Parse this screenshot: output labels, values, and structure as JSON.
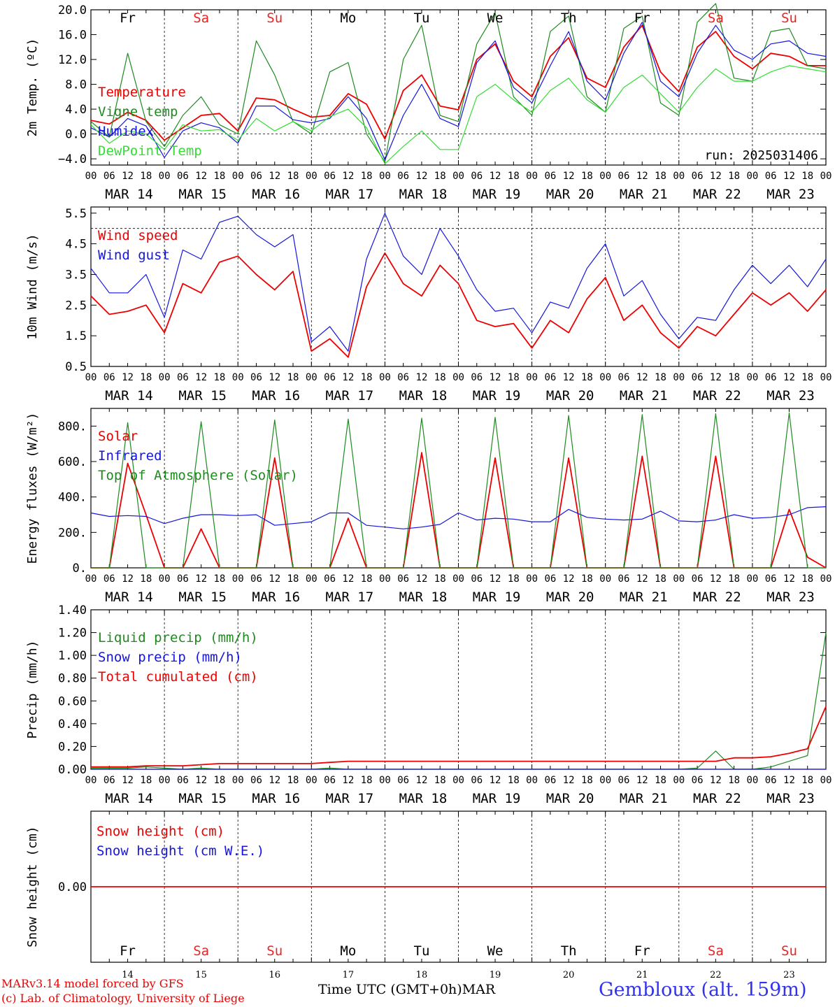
{
  "colors": {
    "red": "#ee0000",
    "green": "#1f8a1f",
    "blue": "#1515dd",
    "lightgreen": "#33dd33",
    "black": "#000000",
    "sat_sun": "#ee2222"
  },
  "days": [
    "Fr",
    "Sa",
    "Su",
    "Mo",
    "Tu",
    "We",
    "Th",
    "Fr",
    "Sa",
    "Su"
  ],
  "day_colors": [
    "black",
    "red",
    "red",
    "black",
    "black",
    "black",
    "black",
    "black",
    "red",
    "red"
  ],
  "dates": [
    "MAR 14",
    "MAR 15",
    "MAR 16",
    "MAR 17",
    "MAR 18",
    "MAR 19",
    "MAR 20",
    "MAR 21",
    "MAR 22",
    "MAR 23"
  ],
  "hour_ticks": [
    "00",
    "06",
    "12",
    "18"
  ],
  "last_hour_tick": "00",
  "day_numbers": [
    "14",
    "15",
    "16",
    "17",
    "18",
    "19",
    "20",
    "21",
    "22",
    "23"
  ],
  "footer": {
    "credit_line1": "MARv3.14 model forced by GFS",
    "credit_line2": "(c) Lab. of Climatology, University of Liege",
    "xaxis_label": "Time UTC (GMT+0h)",
    "month": "MAR",
    "station": "Gembloux (alt. 159m)"
  },
  "chart_data": [
    {
      "type": "line",
      "ylabel": "2m Temp. (ºC)",
      "ylim": [
        -5,
        20
      ],
      "yticks": [
        "20.0",
        "16.0",
        "12.0",
        "8.0",
        "4.0",
        "0.0",
        "−4.0"
      ],
      "ytick_values": [
        20,
        16,
        12,
        8,
        4,
        0,
        -4
      ],
      "dashed_ref": 0,
      "annotation": "run: 2025031406",
      "x": "hours since MAR 14 00 UTC, step 6",
      "series": [
        {
          "name": "Temperature",
          "color": "red",
          "values": [
            2.2,
            1.6,
            3.5,
            2.2,
            -1.0,
            1.0,
            3.0,
            3.3,
            0.5,
            5.8,
            5.5,
            4.0,
            2.7,
            3.0,
            6.5,
            4.8,
            -0.8,
            7.0,
            9.5,
            4.5,
            3.9,
            12.0,
            14.5,
            8.5,
            6.0,
            12.5,
            15.5,
            9.0,
            7.5,
            14.0,
            17.5,
            10.0,
            6.8,
            14.0,
            16.5,
            12.5,
            10.5,
            13.0,
            12.5,
            11.0,
            11.0
          ]
        },
        {
          "name": "Vigne temp",
          "color": "green",
          "values": [
            2.0,
            -0.5,
            13.0,
            2.0,
            -2.0,
            3.0,
            6.0,
            1.5,
            0.0,
            15.0,
            9.5,
            2.0,
            0.0,
            10.0,
            11.5,
            0.0,
            -4.5,
            12.0,
            17.5,
            3.0,
            2.0,
            14.5,
            19.5,
            6.0,
            3.0,
            16.5,
            19.0,
            6.0,
            3.5,
            17.0,
            19.0,
            5.0,
            3.0,
            18.0,
            21.0,
            9.0,
            8.5,
            16.5,
            17.0,
            11.0,
            10.5
          ]
        },
        {
          "name": "Humidex",
          "color": "blue",
          "values": [
            1.0,
            -0.5,
            2.5,
            1.3,
            -3.8,
            0.5,
            1.8,
            1.0,
            -1.5,
            4.5,
            4.5,
            2.3,
            1.8,
            2.5,
            6.0,
            2.5,
            -4.2,
            3.0,
            8.0,
            2.5,
            1.2,
            11.5,
            15.0,
            7.5,
            5.0,
            11.0,
            16.5,
            8.5,
            5.5,
            13.0,
            18.0,
            8.5,
            6.0,
            13.0,
            17.5,
            13.5,
            12.0,
            14.5,
            15.0,
            13.0,
            12.5
          ]
        },
        {
          "name": "DewPoint Temp",
          "color": "lightgreen",
          "values": [
            1.5,
            -1.5,
            0.5,
            0.0,
            -2.5,
            1.5,
            0.5,
            0.7,
            -1.0,
            2.5,
            0.5,
            2.0,
            0.5,
            2.8,
            4.0,
            1.0,
            -4.8,
            -2.0,
            0.5,
            -2.5,
            -2.5,
            6.0,
            8.0,
            5.5,
            3.5,
            7.0,
            9.0,
            5.5,
            3.5,
            7.5,
            9.5,
            6.5,
            3.5,
            7.5,
            10.5,
            8.5,
            8.5,
            10.0,
            11.0,
            10.5,
            10.0
          ]
        }
      ]
    },
    {
      "type": "line",
      "ylabel": "10m Wind (m/s)",
      "ylim": [
        0.5,
        5.7
      ],
      "yticks": [
        "5.5",
        "4.5",
        "3.5",
        "2.5",
        "1.5",
        "0.5"
      ],
      "ytick_values": [
        5.5,
        4.5,
        3.5,
        2.5,
        1.5,
        0.5
      ],
      "dashed_ref": 5.0,
      "x": "hours since MAR 14 00 UTC, step 6",
      "series": [
        {
          "name": "Wind speed",
          "color": "red",
          "values": [
            2.8,
            2.2,
            2.3,
            2.5,
            1.6,
            3.2,
            2.9,
            3.9,
            4.1,
            3.5,
            3.0,
            3.6,
            1.0,
            1.4,
            0.8,
            3.1,
            4.2,
            3.2,
            2.8,
            3.8,
            3.2,
            2.0,
            1.8,
            1.9,
            1.1,
            2.0,
            1.6,
            2.7,
            3.4,
            2.0,
            2.5,
            1.6,
            1.1,
            1.8,
            1.5,
            2.2,
            2.9,
            2.5,
            2.9,
            2.3,
            3.0
          ]
        },
        {
          "name": "Wind gust",
          "color": "blue",
          "values": [
            3.7,
            2.9,
            2.9,
            3.5,
            2.1,
            4.3,
            4.0,
            5.2,
            5.4,
            4.8,
            4.4,
            4.8,
            1.3,
            1.8,
            1.0,
            4.0,
            5.5,
            4.1,
            3.5,
            5.0,
            4.1,
            3.0,
            2.3,
            2.4,
            1.6,
            2.6,
            2.4,
            3.7,
            4.5,
            2.8,
            3.3,
            2.2,
            1.4,
            2.1,
            2.0,
            3.0,
            3.8,
            3.2,
            3.8,
            3.1,
            4.0
          ]
        }
      ]
    },
    {
      "type": "line",
      "ylabel": "Energy fluxes (W/m²)",
      "ylim": [
        0,
        900
      ],
      "yticks": [
        "800.",
        "600.",
        "400.",
        "200.",
        "0."
      ],
      "ytick_values": [
        800,
        600,
        400,
        200,
        0
      ],
      "x": "hours since MAR 14 00 UTC, step 6",
      "series": [
        {
          "name": "Solar",
          "color": "red",
          "values": [
            0,
            0,
            590,
            300,
            0,
            0,
            220,
            0,
            0,
            0,
            620,
            0,
            0,
            0,
            280,
            0,
            0,
            0,
            650,
            0,
            0,
            0,
            620,
            0,
            0,
            0,
            620,
            0,
            0,
            0,
            630,
            0,
            0,
            0,
            630,
            0,
            0,
            0,
            330,
            60,
            0
          ]
        },
        {
          "name": "Infrared",
          "color": "blue",
          "values": [
            310,
            290,
            295,
            290,
            250,
            280,
            300,
            300,
            295,
            300,
            240,
            250,
            260,
            310,
            310,
            240,
            230,
            220,
            230,
            245,
            310,
            270,
            280,
            275,
            260,
            260,
            330,
            285,
            275,
            270,
            275,
            320,
            265,
            260,
            270,
            300,
            280,
            285,
            300,
            340,
            345
          ]
        },
        {
          "name": "Top of Atmosphere (Solar)",
          "color": "green",
          "values": [
            0,
            0,
            820,
            0,
            0,
            0,
            825,
            0,
            0,
            0,
            835,
            0,
            0,
            0,
            840,
            0,
            0,
            0,
            845,
            0,
            0,
            0,
            850,
            0,
            0,
            0,
            860,
            0,
            0,
            0,
            865,
            0,
            0,
            0,
            870,
            0,
            0,
            0,
            875,
            0,
            0
          ]
        }
      ]
    },
    {
      "type": "line",
      "ylabel": "Precip (mm/h)",
      "ylim": [
        0,
        1.4
      ],
      "yticks": [
        "1.40",
        "1.20",
        "1.00",
        "0.80",
        "0.60",
        "0.40",
        "0.20",
        "0.00"
      ],
      "ytick_values": [
        1.4,
        1.2,
        1.0,
        0.8,
        0.6,
        0.4,
        0.2,
        0.0
      ],
      "x": "hours since MAR 14 00 UTC, step 6",
      "series": [
        {
          "name": "Liquid precip (mm/h)",
          "color": "green",
          "values": [
            0.01,
            0.01,
            0.01,
            0.02,
            0.01,
            0.0,
            0.01,
            0.0,
            0.0,
            0.0,
            0.0,
            0.0,
            0.0,
            0.01,
            0.0,
            0.0,
            0.0,
            0.0,
            0.0,
            0.0,
            0.0,
            0.0,
            0.0,
            0.0,
            0.0,
            0.0,
            0.0,
            0.0,
            0.0,
            0.0,
            0.0,
            0.0,
            0.0,
            0.01,
            0.16,
            0.0,
            0.0,
            0.02,
            0.07,
            0.12,
            1.2
          ]
        },
        {
          "name": "Snow precip (mm/h)",
          "color": "blue",
          "values": [
            0,
            0,
            0,
            0,
            0,
            0,
            0,
            0,
            0,
            0,
            0,
            0,
            0,
            0,
            0,
            0,
            0,
            0,
            0,
            0,
            0,
            0,
            0,
            0,
            0,
            0,
            0,
            0,
            0,
            0,
            0,
            0,
            0,
            0,
            0,
            0,
            0,
            0,
            0,
            0,
            0
          ]
        },
        {
          "name": "Total cumulated (cm)",
          "color": "red",
          "values": [
            0.02,
            0.02,
            0.02,
            0.03,
            0.03,
            0.03,
            0.04,
            0.05,
            0.05,
            0.05,
            0.05,
            0.05,
            0.05,
            0.06,
            0.07,
            0.07,
            0.07,
            0.07,
            0.07,
            0.07,
            0.07,
            0.07,
            0.07,
            0.07,
            0.07,
            0.07,
            0.07,
            0.07,
            0.07,
            0.07,
            0.07,
            0.07,
            0.07,
            0.07,
            0.07,
            0.1,
            0.1,
            0.11,
            0.14,
            0.18,
            0.55
          ]
        }
      ]
    },
    {
      "type": "line",
      "ylabel": "Snow height (cm)",
      "ylim": [
        -1,
        1
      ],
      "yticks": [
        "0.00"
      ],
      "ytick_values": [
        0
      ],
      "x": "hours since MAR 14 00 UTC, step 6",
      "series": [
        {
          "name": "Snow height (cm)",
          "color": "red",
          "values": [
            0,
            0,
            0,
            0,
            0,
            0,
            0,
            0,
            0,
            0,
            0,
            0,
            0,
            0,
            0,
            0,
            0,
            0,
            0,
            0,
            0,
            0,
            0,
            0,
            0,
            0,
            0,
            0,
            0,
            0,
            0,
            0,
            0,
            0,
            0,
            0,
            0,
            0,
            0,
            0,
            0
          ]
        },
        {
          "name": "Snow height (cm W.E.)",
          "color": "blue",
          "values": []
        }
      ]
    }
  ]
}
